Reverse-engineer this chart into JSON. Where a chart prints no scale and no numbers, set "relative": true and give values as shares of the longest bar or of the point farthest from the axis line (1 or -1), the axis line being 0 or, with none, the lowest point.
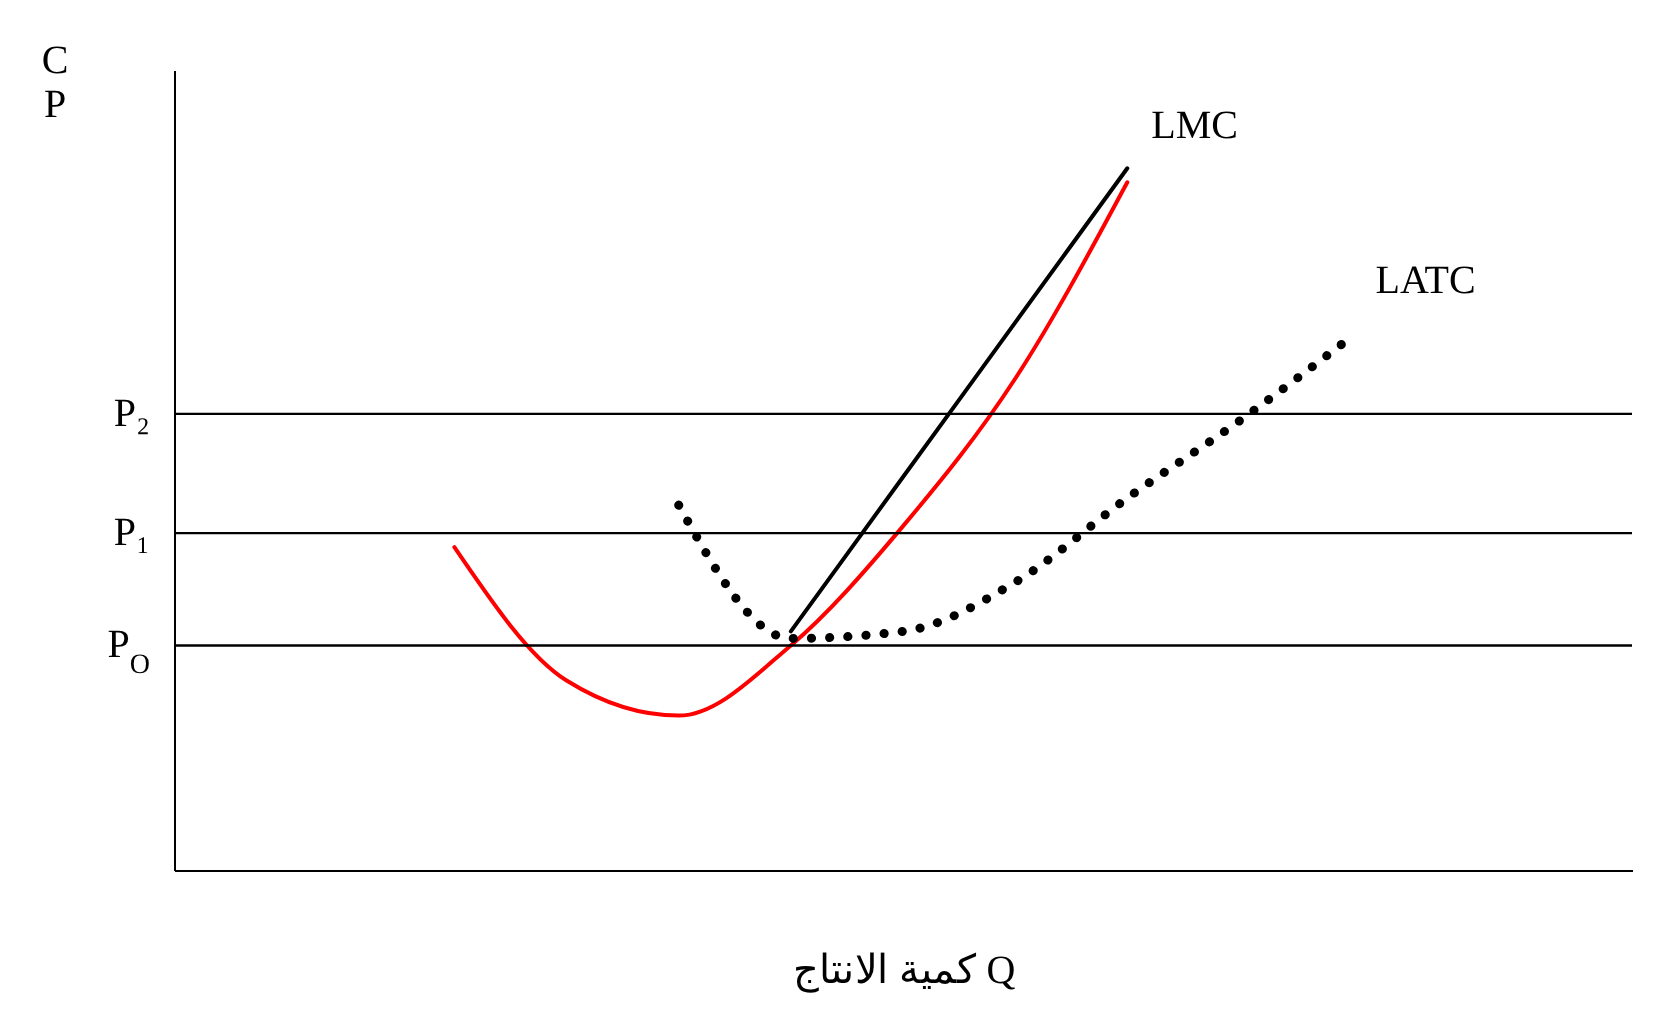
{
  "chart_data": {
    "type": "line",
    "relative": true,
    "ylabel": "C P",
    "xlabel": "كمية الانتاج Q",
    "tick_labels": false,
    "grid": false,
    "legend": false,
    "marker": "none",
    "categories": [
      null,
      null,
      null,
      null,
      null,
      null,
      null,
      null,
      null,
      null,
      null,
      null,
      null
    ],
    "series": [
      {
        "name": "LMC",
        "color": "#ff0000",
        "line_style": "solid",
        "values": [
          null,
          null,
          0.46,
          0.27,
          0.22,
          0.32,
          0.49,
          0.7,
          0.98,
          null,
          null,
          null,
          null
        ]
      },
      {
        "name": "LATC",
        "color": "#000000",
        "line_style": "dotted",
        "values": [
          null,
          null,
          null,
          null,
          0.52,
          0.33,
          0.34,
          0.41,
          0.53,
          0.64,
          0.76,
          null,
          null
        ]
      },
      {
        "color": "#000000",
        "line_style": "solid",
        "values": [
          null,
          null,
          null,
          null,
          null,
          0.34,
          0.56,
          0.78,
          1,
          null,
          null,
          null,
          null
        ]
      }
    ],
    "ref_lines": [
      {
        "axis": "y",
        "value": 0.32,
        "label": "P$_{O}$",
        "color": "#000000"
      },
      {
        "axis": "y",
        "value": 0.48,
        "label": "P₁",
        "color": "#000000"
      },
      {
        "axis": "y",
        "value": 0.65,
        "label": "P₂",
        "color": "#000000"
      }
    ]
  }
}
